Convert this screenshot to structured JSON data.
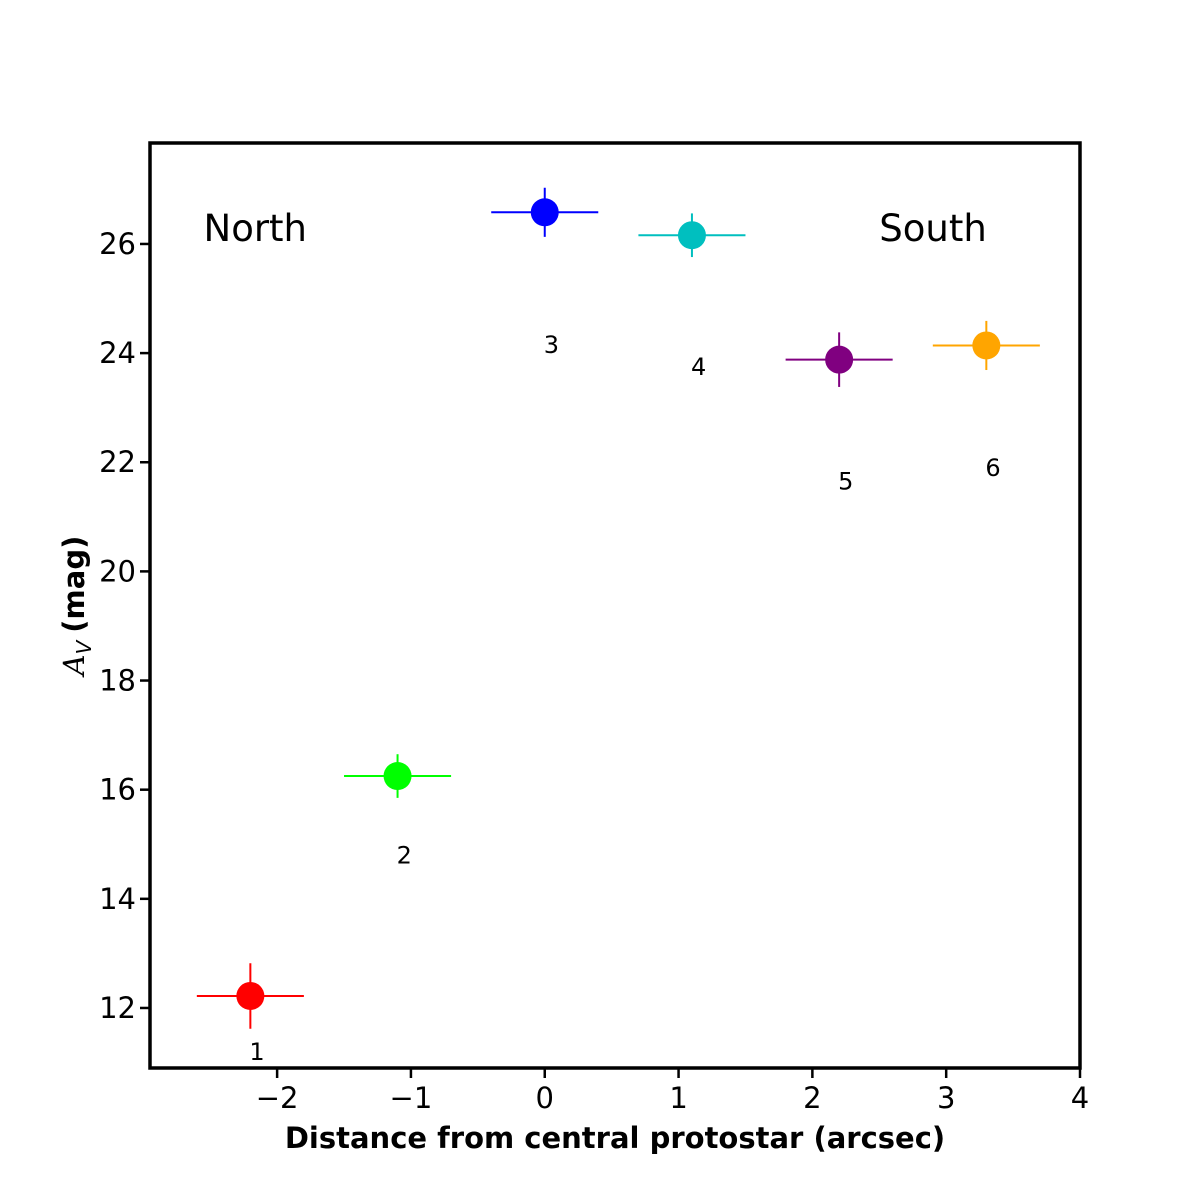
{
  "chart_data": {
    "type": "scatter",
    "title": "",
    "xlabel": "Distance from central protostar (arcsec)",
    "ylabel_main": "A",
    "ylabel_sub": "V",
    "ylabel_unit": "(mag)",
    "xlim": [
      -2.95,
      4.0
    ],
    "ylim": [
      10.9,
      27.85
    ],
    "xticks": [
      -2,
      -1,
      0,
      1,
      2,
      3,
      4
    ],
    "xtick_labels": [
      "−2",
      "−1",
      "0",
      "1",
      "2",
      "3",
      "4"
    ],
    "yticks": [
      12,
      14,
      16,
      18,
      20,
      22,
      24,
      26
    ],
    "ytick_labels": [
      "12",
      "14",
      "16",
      "18",
      "20",
      "22",
      "24",
      "26"
    ],
    "grid": false,
    "legend": "none",
    "region_labels": [
      {
        "text": "North",
        "x": -2.55,
        "y": 26.05
      },
      {
        "text": "South",
        "x": 2.5,
        "y": 26.05
      }
    ],
    "points": [
      {
        "label": "1",
        "x": -2.2,
        "y": 12.22,
        "xerr": 0.4,
        "yerr": 0.6,
        "color": "#ff0000",
        "label_x": -2.15,
        "label_y": 11.05
      },
      {
        "label": "2",
        "x": -1.1,
        "y": 16.25,
        "xerr": 0.4,
        "yerr": 0.4,
        "color": "#00ff00",
        "label_x": -1.05,
        "label_y": 14.65
      },
      {
        "label": "3",
        "x": 0.0,
        "y": 26.58,
        "xerr": 0.4,
        "yerr": 0.45,
        "color": "#0000ff",
        "label_x": 0.05,
        "label_y": 24.0
      },
      {
        "label": "4",
        "x": 1.1,
        "y": 26.16,
        "xerr": 0.4,
        "yerr": 0.4,
        "color": "#00bfbf",
        "label_x": 1.15,
        "label_y": 23.6
      },
      {
        "label": "5",
        "x": 2.2,
        "y": 23.88,
        "xerr": 0.4,
        "yerr": 0.5,
        "color": "#800080",
        "label_x": 2.25,
        "label_y": 21.5
      },
      {
        "label": "6",
        "x": 3.3,
        "y": 24.14,
        "xerr": 0.4,
        "yerr": 0.45,
        "color": "#ffa500",
        "label_x": 3.35,
        "label_y": 21.75
      }
    ]
  }
}
